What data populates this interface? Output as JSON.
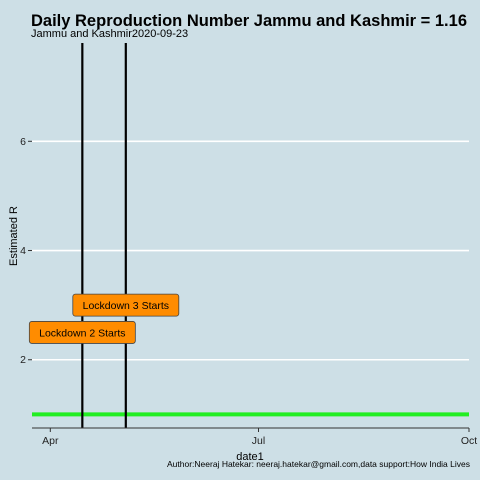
{
  "chart_data": {
    "type": "line",
    "title": "Daily Reproduction Number Jammu and Kashmir = 1.16",
    "subtitle": "Jammu and Kashmir2020-09-23",
    "xlabel": "date1",
    "ylabel": "Estimated R",
    "caption": "Author:Neeraj Hatekar: neeraj.hatekar@gmail.com,data support:How India Lives",
    "xlim": [
      "2020-03-24",
      "2020-10-01"
    ],
    "ylim": [
      0.75,
      7.8
    ],
    "x_ticks": [
      {
        "value": "2020-04-01",
        "label": "Apr"
      },
      {
        "value": "2020-07-01",
        "label": "Jul"
      },
      {
        "value": "2020-10-01",
        "label": "Oct"
      }
    ],
    "y_ticks": [
      2,
      4,
      6
    ],
    "grid": {
      "horizontal_major": true,
      "vertical": false
    },
    "series": [
      {
        "color": "#22ee22",
        "x": [
          "2020-03-24",
          "2020-10-01"
        ],
        "y": [
          1.0,
          1.0
        ]
      }
    ],
    "vertical_lines": [
      {
        "x": "2020-04-15",
        "color": "#000000"
      },
      {
        "x": "2020-05-04",
        "color": "#000000"
      }
    ],
    "annotations": [
      {
        "text": "Lockdown 2 Starts",
        "x": "2020-04-15",
        "y": 2.5,
        "fill": "#ff8c00"
      },
      {
        "text": "Lockdown 3 Starts",
        "x": "2020-05-04",
        "y": 3.0,
        "fill": "#ff8c00"
      }
    ]
  }
}
